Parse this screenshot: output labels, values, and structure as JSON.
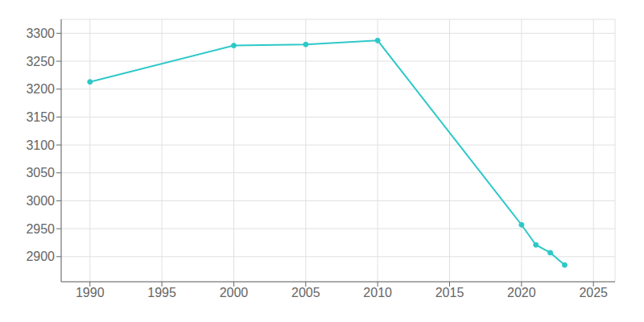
{
  "chart_data": {
    "type": "line",
    "x": [
      1990,
      2000,
      2005,
      2010,
      2020,
      2021,
      2022,
      2023
    ],
    "values": [
      3213,
      3278,
      3280,
      3287,
      2957,
      2921,
      2907,
      2885
    ],
    "color": "#2ec8c8",
    "marker": "circle",
    "xlim": [
      1988,
      2026.5
    ],
    "ylim": [
      2855,
      3325
    ],
    "xticks": [
      1990,
      1995,
      2000,
      2005,
      2010,
      2015,
      2020,
      2025
    ],
    "yticks": [
      2900,
      2950,
      3000,
      3050,
      3100,
      3150,
      3200,
      3250,
      3300
    ],
    "grid": true
  }
}
